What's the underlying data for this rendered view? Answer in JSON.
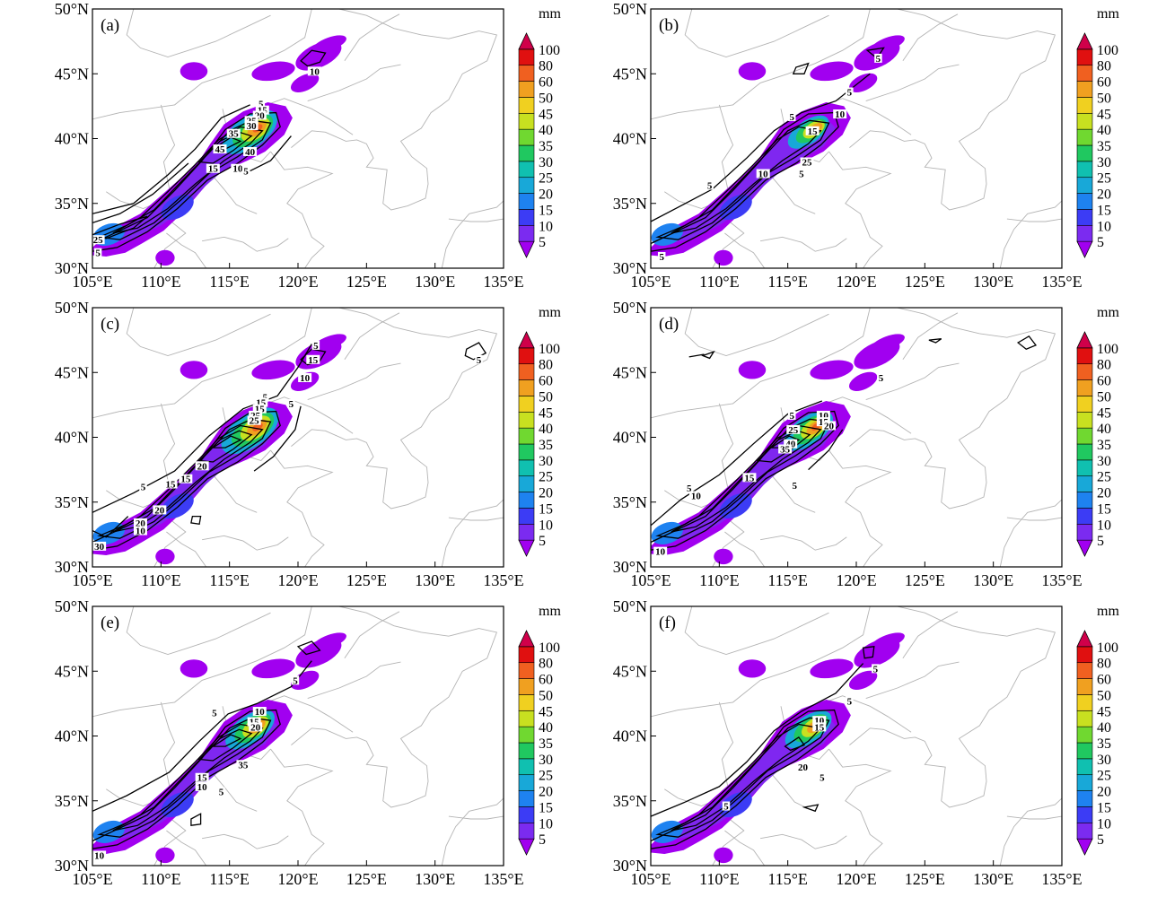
{
  "figure": {
    "unit_label": "mm",
    "panel_labels": [
      "(a)",
      "(b)",
      "(c)",
      "(d)",
      "(e)",
      "(f)"
    ],
    "lat_ticks": [
      "30°N",
      "35°N",
      "40°N",
      "45°N",
      "50°N"
    ],
    "lon_ticks": [
      "105°E",
      "110°E",
      "115°E",
      "120°E",
      "125°E",
      "130°E",
      "135°E"
    ],
    "colorbar": {
      "levels": [
        "5",
        "10",
        "15",
        "20",
        "25",
        "30",
        "35",
        "40",
        "45",
        "50",
        "60",
        "80",
        "100"
      ],
      "colors": [
        "#a100f0",
        "#7b2bf0",
        "#3c3cf5",
        "#1e82f0",
        "#18a8d8",
        "#10c0b0",
        "#20c860",
        "#70d830",
        "#c8e020",
        "#f0d020",
        "#f0a020",
        "#f06020",
        "#e01010",
        "#d0004a"
      ]
    },
    "accent_colors": {
      "gridline": "#b4b4b4",
      "contour": "#000000"
    }
  },
  "panels": [
    {
      "label": "(a)",
      "contour_labels": [
        {
          "text": "10",
          "lon": 121.2,
          "lat": 45.2
        },
        {
          "text": "5",
          "lon": 117.3,
          "lat": 42.7
        },
        {
          "text": "15",
          "lon": 117.4,
          "lat": 42.2
        },
        {
          "text": "20",
          "lon": 117.2,
          "lat": 41.8
        },
        {
          "text": "25",
          "lon": 116.6,
          "lat": 41.4
        },
        {
          "text": "30",
          "lon": 116.6,
          "lat": 41.0
        },
        {
          "text": "35",
          "lon": 115.3,
          "lat": 40.4
        },
        {
          "text": "45",
          "lon": 114.3,
          "lat": 39.2
        },
        {
          "text": "40",
          "lon": 116.5,
          "lat": 39.0
        },
        {
          "text": "15",
          "lon": 113.8,
          "lat": 37.7
        },
        {
          "text": "10",
          "lon": 115.6,
          "lat": 37.7
        },
        {
          "text": "5",
          "lon": 116.2,
          "lat": 37.5
        },
        {
          "text": "25",
          "lon": 105.4,
          "lat": 32.2
        },
        {
          "text": "5",
          "lon": 105.4,
          "lat": 31.2
        }
      ]
    },
    {
      "label": "(b)",
      "contour_labels": [
        {
          "text": "5",
          "lon": 121.6,
          "lat": 46.2
        },
        {
          "text": "5",
          "lon": 119.5,
          "lat": 43.6
        },
        {
          "text": "10",
          "lon": 118.8,
          "lat": 41.9
        },
        {
          "text": "5",
          "lon": 115.3,
          "lat": 41.7
        },
        {
          "text": "15",
          "lon": 116.8,
          "lat": 40.6
        },
        {
          "text": "25",
          "lon": 116.4,
          "lat": 38.2
        },
        {
          "text": "10",
          "lon": 113.2,
          "lat": 37.3
        },
        {
          "text": "5",
          "lon": 116.0,
          "lat": 37.3
        },
        {
          "text": "5",
          "lon": 109.3,
          "lat": 36.4
        },
        {
          "text": "5",
          "lon": 105.8,
          "lat": 30.9
        }
      ]
    },
    {
      "label": "(c)",
      "contour_labels": [
        {
          "text": "5",
          "lon": 121.3,
          "lat": 47.1
        },
        {
          "text": "15",
          "lon": 121.1,
          "lat": 46.0
        },
        {
          "text": "10",
          "lon": 120.5,
          "lat": 44.6
        },
        {
          "text": "5",
          "lon": 133.2,
          "lat": 46.0
        },
        {
          "text": "5",
          "lon": 119.5,
          "lat": 42.6
        },
        {
          "text": "5",
          "lon": 117.6,
          "lat": 43.1
        },
        {
          "text": "15",
          "lon": 117.3,
          "lat": 42.7
        },
        {
          "text": "15",
          "lon": 117.2,
          "lat": 42.2
        },
        {
          "text": "25",
          "lon": 116.9,
          "lat": 41.7
        },
        {
          "text": "25",
          "lon": 116.8,
          "lat": 41.3
        },
        {
          "text": "20",
          "lon": 113.0,
          "lat": 37.8
        },
        {
          "text": "15",
          "lon": 111.8,
          "lat": 36.8
        },
        {
          "text": "5",
          "lon": 108.7,
          "lat": 36.2
        },
        {
          "text": "15",
          "lon": 110.7,
          "lat": 36.4
        },
        {
          "text": "20",
          "lon": 109.9,
          "lat": 34.4
        },
        {
          "text": "20",
          "lon": 108.5,
          "lat": 33.4
        },
        {
          "text": "10",
          "lon": 108.5,
          "lat": 32.8
        },
        {
          "text": "30",
          "lon": 105.5,
          "lat": 31.6
        }
      ]
    },
    {
      "label": "(d)",
      "contour_labels": [
        {
          "text": "5",
          "lon": 121.8,
          "lat": 44.6
        },
        {
          "text": "5",
          "lon": 115.3,
          "lat": 41.7
        },
        {
          "text": "10",
          "lon": 117.6,
          "lat": 41.7
        },
        {
          "text": "15",
          "lon": 117.6,
          "lat": 41.2
        },
        {
          "text": "20",
          "lon": 118.0,
          "lat": 40.9
        },
        {
          "text": "25",
          "lon": 115.4,
          "lat": 40.6
        },
        {
          "text": "40",
          "lon": 115.2,
          "lat": 39.5
        },
        {
          "text": "35",
          "lon": 114.8,
          "lat": 39.1
        },
        {
          "text": "15",
          "lon": 112.2,
          "lat": 36.9
        },
        {
          "text": "5",
          "lon": 115.5,
          "lat": 36.3
        },
        {
          "text": "5",
          "lon": 107.8,
          "lat": 36.1
        },
        {
          "text": "10",
          "lon": 108.3,
          "lat": 35.5
        },
        {
          "text": "10",
          "lon": 105.7,
          "lat": 31.2
        }
      ]
    },
    {
      "label": "(e)",
      "contour_labels": [
        {
          "text": "5",
          "lon": 119.8,
          "lat": 44.3
        },
        {
          "text": "5",
          "lon": 113.9,
          "lat": 41.8
        },
        {
          "text": "10",
          "lon": 117.2,
          "lat": 41.9
        },
        {
          "text": "15",
          "lon": 116.8,
          "lat": 41.1
        },
        {
          "text": "20",
          "lon": 116.9,
          "lat": 40.7
        },
        {
          "text": "35",
          "lon": 116.0,
          "lat": 37.8
        },
        {
          "text": "15",
          "lon": 113.0,
          "lat": 36.8
        },
        {
          "text": "10",
          "lon": 113.0,
          "lat": 36.1
        },
        {
          "text": "5",
          "lon": 114.4,
          "lat": 35.7
        },
        {
          "text": "10",
          "lon": 105.5,
          "lat": 30.8
        }
      ]
    },
    {
      "label": "(f)",
      "contour_labels": [
        {
          "text": "5",
          "lon": 121.4,
          "lat": 45.2
        },
        {
          "text": "5",
          "lon": 119.5,
          "lat": 42.7
        },
        {
          "text": "10",
          "lon": 117.3,
          "lat": 41.2
        },
        {
          "text": "15",
          "lon": 117.3,
          "lat": 40.7
        },
        {
          "text": "20",
          "lon": 116.1,
          "lat": 37.6
        },
        {
          "text": "5",
          "lon": 117.5,
          "lat": 36.8
        },
        {
          "text": "5",
          "lon": 110.5,
          "lat": 34.6
        }
      ]
    }
  ]
}
